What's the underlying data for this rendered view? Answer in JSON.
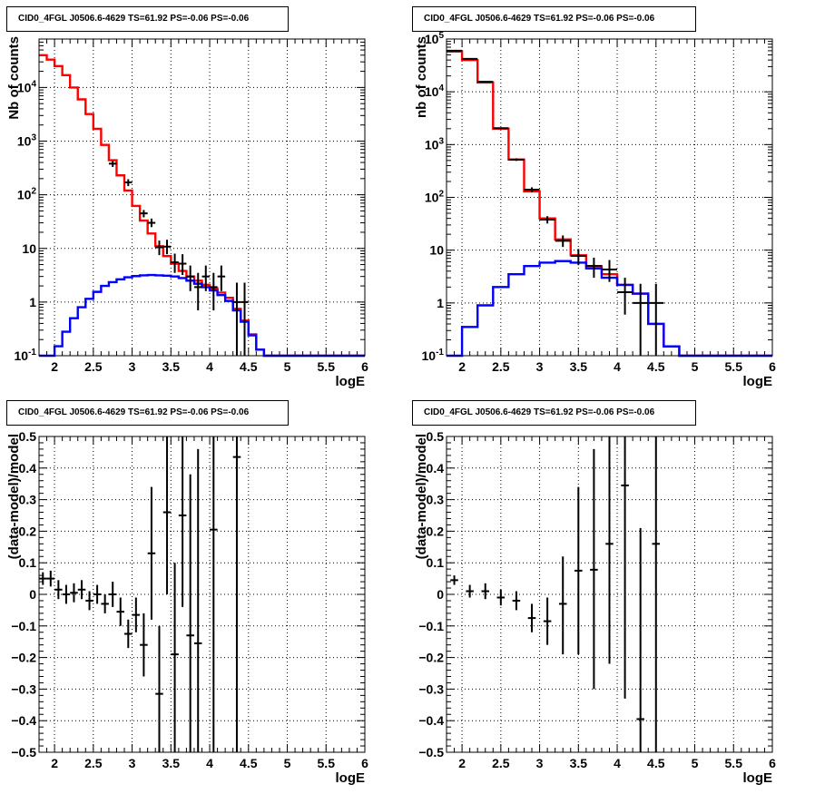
{
  "panel_titles": [
    "CID0_4FGL J0506.6-4629 TS=61.92 PS=-0.06 PS=-0.06",
    "CID0_4FGL J0506.6-4629 TS=61.92 PS=-0.06 PS=-0.06",
    "CID0_4FGL J0506.6-4629 TS=61.92 PS=-0.06 PS=-0.06",
    "CID0_4FGL J0506.6-4629 TS=61.92 PS=-0.06 PS=-0.06"
  ],
  "chart_data": [
    {
      "type": "line",
      "title": "CID0_4FGL J0506.6-4629 TS=61.92 PS=-0.06 PS=-0.06",
      "xlabel": "logE",
      "ylabel": "Nb of counts",
      "xlim": [
        1.8,
        6.0
      ],
      "ylim": [
        0.1,
        80000
      ],
      "log_y": true,
      "grid": true,
      "x_ticks": [
        "2",
        "2.5",
        "3",
        "3.5",
        "4",
        "4.5",
        "5",
        "5.5",
        "6"
      ],
      "y_ticks": [
        "10^-1",
        "1",
        "10",
        "10^2",
        "10^3",
        "10^4"
      ],
      "bin_edges": [
        1.8,
        1.9,
        2.0,
        2.1,
        2.2,
        2.3,
        2.4,
        2.5,
        2.6,
        2.7,
        2.8,
        2.9,
        3.0,
        3.1,
        3.2,
        3.3,
        3.4,
        3.5,
        3.6,
        3.7,
        3.8,
        3.9,
        4.0,
        4.1,
        4.2,
        4.3,
        4.4,
        4.5,
        4.6,
        4.7,
        4.8,
        4.9,
        5.0,
        5.1,
        5.2,
        5.3,
        5.4,
        5.5,
        5.6,
        5.7,
        5.8,
        5.9,
        6.0
      ],
      "series": [
        {
          "color": "#ff0000",
          "values": [
            40000,
            33000,
            25000,
            17000,
            10000,
            6000,
            3200,
            1700,
            850,
            440,
            230,
            120,
            62,
            33,
            19,
            11,
            7.2,
            5.2,
            3.8,
            3.0,
            2.5,
            2.1,
            1.8,
            1.5,
            1.2,
            0.75,
            0.45,
            0.25,
            0.13,
            0.1,
            0.1,
            0.1,
            0.1,
            0.1,
            0.1,
            0.1,
            0.1,
            0.1,
            0.1,
            0.1,
            0.1,
            0.1
          ]
        },
        {
          "color": "#0000ff",
          "values": [
            0.1,
            0.1,
            0.15,
            0.28,
            0.5,
            0.8,
            1.15,
            1.55,
            2.0,
            2.35,
            2.65,
            2.9,
            3.05,
            3.15,
            3.2,
            3.15,
            3.1,
            3.0,
            2.8,
            2.5,
            2.2,
            1.9,
            1.65,
            1.35,
            1.05,
            0.7,
            0.43,
            0.24,
            0.13,
            0.1,
            0.1,
            0.1,
            0.1,
            0.1,
            0.1,
            0.1,
            0.1,
            0.1,
            0.1,
            0.1,
            0.1,
            0.1
          ]
        }
      ],
      "points": [
        {
          "x": 2.75,
          "y": 380,
          "lo": 330,
          "hi": 430
        },
        {
          "x": 2.95,
          "y": 170,
          "lo": 145,
          "hi": 195
        },
        {
          "x": 3.15,
          "y": 45,
          "lo": 38,
          "hi": 52
        },
        {
          "x": 3.25,
          "y": 30,
          "lo": 25,
          "hi": 36
        },
        {
          "x": 3.35,
          "y": 10.5,
          "lo": 7.5,
          "hi": 14
        },
        {
          "x": 3.45,
          "y": 10.8,
          "lo": 7.8,
          "hi": 14.5
        },
        {
          "x": 3.55,
          "y": 5.5,
          "lo": 3.5,
          "hi": 8
        },
        {
          "x": 3.65,
          "y": 5.2,
          "lo": 3.2,
          "hi": 7.8
        },
        {
          "x": 3.75,
          "y": 3.0,
          "lo": 1.6,
          "hi": 4.8
        },
        {
          "x": 3.85,
          "y": 1.9,
          "lo": 0.7,
          "hi": 3.5
        },
        {
          "x": 3.95,
          "y": 3.0,
          "lo": 1.6,
          "hi": 4.8
        },
        {
          "x": 4.05,
          "y": 1.9,
          "lo": 0.7,
          "hi": 3.5
        },
        {
          "x": 4.15,
          "y": 3.0,
          "lo": 1.6,
          "hi": 4.8
        },
        {
          "x": 4.35,
          "y": 1.0,
          "lo": 0.1,
          "hi": 2.3
        },
        {
          "x": 4.45,
          "y": 1.0,
          "lo": 0.1,
          "hi": 2.3
        }
      ]
    },
    {
      "type": "line",
      "title": "CID0_4FGL J0506.6-4629 TS=61.92 PS=-0.06 PS=-0.06",
      "xlabel": "logE",
      "ylabel": "nb of counts",
      "xlim": [
        1.8,
        6.0
      ],
      "ylim": [
        0.1,
        100000
      ],
      "log_y": true,
      "grid": true,
      "x_ticks": [
        "2",
        "2.5",
        "3",
        "3.5",
        "4",
        "4.5",
        "5",
        "5.5",
        "6"
      ],
      "y_ticks": [
        "10^-1",
        "1",
        "10",
        "10^2",
        "10^3",
        "10^4",
        "10^5"
      ],
      "bin_edges": [
        1.8,
        2.0,
        2.2,
        2.4,
        2.6,
        2.8,
        3.0,
        3.2,
        3.4,
        3.6,
        3.8,
        4.0,
        4.2,
        4.4,
        4.6,
        4.8,
        5.0,
        5.2,
        5.4,
        5.6,
        5.8,
        6.0
      ],
      "series": [
        {
          "color": "#ff0000",
          "values": [
            58000,
            40000,
            15000,
            2000,
            520,
            130,
            40,
            16,
            8,
            5,
            3.5,
            2.2,
            1.5,
            0.4,
            0.15,
            0.1,
            0.1,
            0.1,
            0.1,
            0.1,
            0.1
          ]
        },
        {
          "color": "#0000ff",
          "values": [
            0.1,
            0.35,
            0.9,
            2.0,
            3.5,
            5.0,
            5.8,
            6.2,
            5.8,
            4.5,
            3.0,
            2.2,
            1.5,
            0.4,
            0.15,
            0.1,
            0.1,
            0.1,
            0.1,
            0.1,
            0.1
          ]
        }
      ],
      "points": [
        {
          "x": 1.9,
          "y": 60000,
          "lo": 59000,
          "hi": 61000
        },
        {
          "x": 2.1,
          "y": 42000,
          "lo": 41000,
          "hi": 43000
        },
        {
          "x": 2.3,
          "y": 15500,
          "lo": 15000,
          "hi": 16000
        },
        {
          "x": 2.5,
          "y": 2050,
          "lo": 1980,
          "hi": 2120
        },
        {
          "x": 2.7,
          "y": 520,
          "lo": 490,
          "hi": 550
        },
        {
          "x": 2.9,
          "y": 140,
          "lo": 125,
          "hi": 155
        },
        {
          "x": 3.1,
          "y": 38,
          "lo": 32,
          "hi": 44
        },
        {
          "x": 3.3,
          "y": 15,
          "lo": 11.5,
          "hi": 19
        },
        {
          "x": 3.5,
          "y": 7.8,
          "lo": 5.2,
          "hi": 10.5
        },
        {
          "x": 3.7,
          "y": 5.0,
          "lo": 3.0,
          "hi": 7.2
        },
        {
          "x": 3.9,
          "y": 4.3,
          "lo": 2.5,
          "hi": 6.5
        },
        {
          "x": 4.1,
          "y": 1.6,
          "lo": 0.6,
          "hi": 3.0
        },
        {
          "x": 4.3,
          "y": 1.0,
          "lo": 0.1,
          "hi": 2.3
        },
        {
          "x": 4.5,
          "y": 1.0,
          "lo": 0.1,
          "hi": 2.3
        }
      ]
    },
    {
      "type": "scatter",
      "title": "CID0_4FGL J0506.6-4629 TS=61.92 PS=-0.06 PS=-0.06",
      "xlabel": "logE",
      "ylabel": "(data-model)/model",
      "xlim": [
        1.8,
        6.0
      ],
      "ylim": [
        -0.5,
        0.5
      ],
      "grid": true,
      "x_ticks": [
        "2",
        "2.5",
        "3",
        "3.5",
        "4",
        "4.5",
        "5",
        "5.5",
        "6"
      ],
      "y_ticks": [
        "-0.5",
        "-0.4",
        "-0.3",
        "-0.2",
        "-0.1",
        "0",
        "0.1",
        "0.2",
        "0.3",
        "0.4",
        "0.5"
      ],
      "points": [
        {
          "x": 1.85,
          "y": 0.05,
          "lo": 0.03,
          "hi": 0.07
        },
        {
          "x": 1.95,
          "y": 0.05,
          "lo": 0.025,
          "hi": 0.075
        },
        {
          "x": 2.05,
          "y": 0.015,
          "lo": -0.015,
          "hi": 0.045
        },
        {
          "x": 2.15,
          "y": 0.0,
          "lo": -0.03,
          "hi": 0.03
        },
        {
          "x": 2.25,
          "y": 0.005,
          "lo": -0.025,
          "hi": 0.035
        },
        {
          "x": 2.35,
          "y": 0.015,
          "lo": -0.015,
          "hi": 0.045
        },
        {
          "x": 2.45,
          "y": -0.02,
          "lo": -0.05,
          "hi": 0.01
        },
        {
          "x": 2.55,
          "y": 0.0,
          "lo": -0.03,
          "hi": 0.03
        },
        {
          "x": 2.65,
          "y": -0.03,
          "lo": -0.06,
          "hi": 0.0
        },
        {
          "x": 2.75,
          "y": 0.0,
          "lo": -0.04,
          "hi": 0.04
        },
        {
          "x": 2.85,
          "y": -0.055,
          "lo": -0.1,
          "hi": -0.01
        },
        {
          "x": 2.95,
          "y": -0.125,
          "lo": -0.17,
          "hi": -0.08
        },
        {
          "x": 3.05,
          "y": -0.065,
          "lo": -0.12,
          "hi": -0.01
        },
        {
          "x": 3.15,
          "y": -0.16,
          "lo": -0.26,
          "hi": -0.06
        },
        {
          "x": 3.25,
          "y": 0.13,
          "lo": -0.08,
          "hi": 0.34
        },
        {
          "x": 3.35,
          "y": -0.315,
          "lo": -0.5,
          "hi": -0.1
        },
        {
          "x": 3.45,
          "y": 0.26,
          "lo": 0.0,
          "hi": 0.5
        },
        {
          "x": 3.55,
          "y": -0.19,
          "lo": -0.5,
          "hi": 0.1
        },
        {
          "x": 3.65,
          "y": 0.25,
          "lo": -0.04,
          "hi": 0.5
        },
        {
          "x": 3.75,
          "y": -0.13,
          "lo": -0.5,
          "hi": 0.38
        },
        {
          "x": 3.85,
          "y": -0.155,
          "lo": -0.5,
          "hi": 0.46
        },
        {
          "x": 4.05,
          "y": 0.205,
          "lo": -0.5,
          "hi": 0.5
        },
        {
          "x": 4.35,
          "y": 0.435,
          "lo": -0.5,
          "hi": 0.5
        }
      ]
    },
    {
      "type": "scatter",
      "title": "CID0_4FGL J0506.6-4629 TS=61.92 PS=-0.06 PS=-0.06",
      "xlabel": "logE",
      "ylabel": "(data-model)/model",
      "xlim": [
        1.8,
        6.0
      ],
      "ylim": [
        -0.5,
        0.5
      ],
      "grid": true,
      "x_ticks": [
        "2",
        "2.5",
        "3",
        "3.5",
        "4",
        "4.5",
        "5",
        "5.5",
        "6"
      ],
      "y_ticks": [
        "-0.5",
        "-0.4",
        "-0.3",
        "-0.2",
        "-0.1",
        "0",
        "0.1",
        "0.2",
        "0.3",
        "0.4",
        "0.5"
      ],
      "points": [
        {
          "x": 1.9,
          "y": 0.045,
          "lo": 0.03,
          "hi": 0.06
        },
        {
          "x": 2.1,
          "y": 0.01,
          "lo": -0.01,
          "hi": 0.03
        },
        {
          "x": 2.3,
          "y": 0.01,
          "lo": -0.015,
          "hi": 0.035
        },
        {
          "x": 2.5,
          "y": -0.01,
          "lo": -0.035,
          "hi": 0.015
        },
        {
          "x": 2.7,
          "y": -0.02,
          "lo": -0.05,
          "hi": 0.01
        },
        {
          "x": 2.9,
          "y": -0.075,
          "lo": -0.12,
          "hi": -0.03
        },
        {
          "x": 3.1,
          "y": -0.085,
          "lo": -0.16,
          "hi": -0.01
        },
        {
          "x": 3.3,
          "y": -0.03,
          "lo": -0.19,
          "hi": 0.12
        },
        {
          "x": 3.5,
          "y": 0.075,
          "lo": -0.19,
          "hi": 0.34
        },
        {
          "x": 3.7,
          "y": 0.078,
          "lo": -0.3,
          "hi": 0.46
        },
        {
          "x": 3.9,
          "y": 0.16,
          "lo": -0.22,
          "hi": 0.5
        },
        {
          "x": 4.1,
          "y": 0.345,
          "lo": -0.33,
          "hi": 0.5
        },
        {
          "x": 4.3,
          "y": -0.395,
          "lo": -0.5,
          "hi": 0.21
        },
        {
          "x": 4.5,
          "y": 0.16,
          "lo": -0.5,
          "hi": 0.5
        }
      ]
    }
  ]
}
